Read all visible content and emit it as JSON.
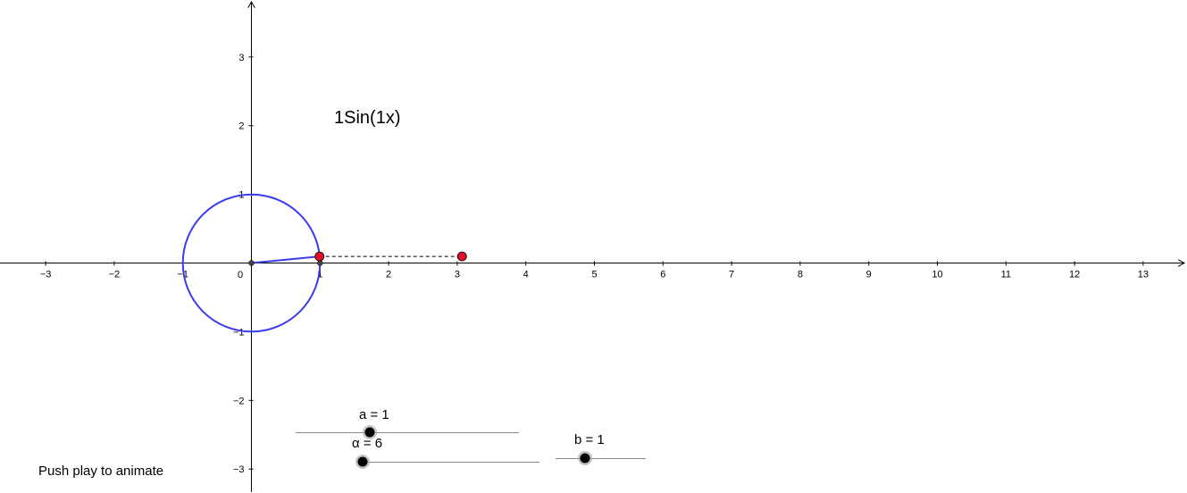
{
  "function_label": "1Sin(1x)",
  "caption": "Push play to animate",
  "axes": {
    "x_ticks": [
      -3,
      -2,
      -1,
      0,
      1,
      2,
      3,
      4,
      5,
      6,
      7,
      8,
      9,
      10,
      11,
      12,
      13
    ],
    "y_ticks": [
      -3,
      -2,
      -1,
      1,
      2,
      3
    ],
    "origin_label": "0"
  },
  "unit_circle": {
    "center": [
      0,
      0
    ],
    "radius": 1,
    "color": "#3b3bef"
  },
  "radius_point": [
    0.993,
    0.096
  ],
  "projection_point": [
    3.07,
    0.096
  ],
  "foot_point": [
    1,
    0
  ],
  "point_color": "#e0102a",
  "sliders": [
    {
      "name": "a",
      "label": "a = 1",
      "value": 1
    },
    {
      "name": "alpha",
      "label": "α = 6",
      "value": 6
    },
    {
      "name": "b",
      "label": "b = 1",
      "value": 1
    }
  ]
}
